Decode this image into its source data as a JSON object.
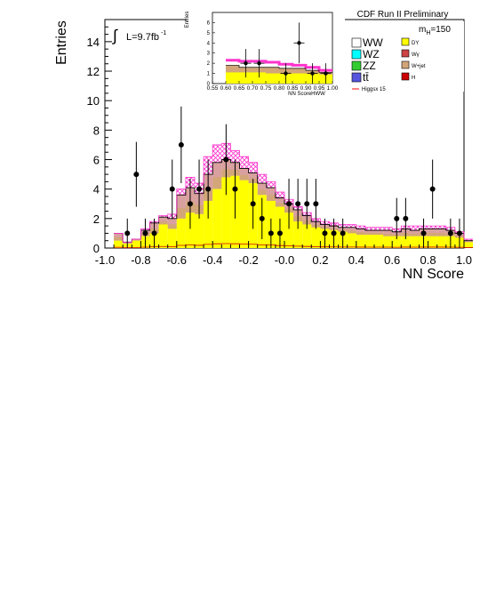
{
  "chart_data": [
    {
      "type": "histogram",
      "title": "CDF Run II Preliminary",
      "xlabel": "NN Score",
      "ylabel": "Entries",
      "xlim": [
        -1.0,
        1.0
      ],
      "ylim": [
        0,
        15.5
      ],
      "x_ticks": [
        "-1.0",
        "-0.8",
        "-0.6",
        "-0.4",
        "-0.2",
        "-0.0",
        "0.2",
        "0.4",
        "0.6",
        "0.8",
        "1.0"
      ],
      "y_ticks": [
        "0",
        "2",
        "4",
        "6",
        "8",
        "10",
        "12",
        "14"
      ],
      "luminosity_label": "L=9.7fb",
      "luminosity_sup": "-1",
      "integral_symbol": "∫",
      "mass_label": "m",
      "mass_sub": "H",
      "mass_value": "=150",
      "legend": [
        {
          "label": "WW",
          "color": "#ffffff",
          "size": "large"
        },
        {
          "label": "DY",
          "color": "#ffff00",
          "size": "small"
        },
        {
          "label": "WZ",
          "color": "#00ffff",
          "size": "large"
        },
        {
          "label": "Wγ",
          "color": "#cc4444",
          "size": "small"
        },
        {
          "label": "ZZ",
          "color": "#33cc33",
          "size": "large"
        },
        {
          "label": "W+jet",
          "color": "#d2a679",
          "size": "small"
        },
        {
          "label": "tt̄",
          "color": "#5555dd",
          "size": "large"
        },
        {
          "label": "H",
          "color": "#cc0000",
          "size": "small"
        },
        {
          "label": "Higgsx 15",
          "color": "#ff3333",
          "size": "line"
        }
      ],
      "bin_edges_start": -0.95,
      "bin_width": 0.05,
      "dy": [
        0.5,
        0.3,
        0.5,
        0.8,
        1.0,
        1.6,
        1.3,
        2.0,
        2.4,
        2.3,
        3.2,
        4.0,
        4.8,
        4.9,
        4.6,
        4.4,
        3.6,
        3.2,
        2.8,
        2.4,
        1.8,
        1.6,
        1.4,
        1.3,
        1.2,
        1.1,
        1.0,
        0.9,
        0.9,
        0.9,
        0.8,
        0.8,
        0.8,
        0.8,
        0.8,
        0.8,
        0.8,
        0.8,
        0.7,
        0.4
      ],
      "total_bkg": [
        1.0,
        0.4,
        0.6,
        1.2,
        1.7,
        2.1,
        2.0,
        3.6,
        4.1,
        3.7,
        5.0,
        5.8,
        6.0,
        5.8,
        5.4,
        5.1,
        4.4,
        4.1,
        3.4,
        3.0,
        2.6,
        2.2,
        1.8,
        1.6,
        1.5,
        1.4,
        1.4,
        1.3,
        1.2,
        1.2,
        1.2,
        1.1,
        1.3,
        1.2,
        1.3,
        1.3,
        1.3,
        1.2,
        1.0,
        0.5
      ],
      "signal_envelope": [
        1.0,
        0.4,
        0.6,
        1.3,
        1.8,
        2.2,
        2.3,
        4.0,
        4.8,
        4.4,
        6.2,
        7.0,
        7.1,
        6.6,
        6.2,
        5.8,
        5.0,
        4.5,
        3.8,
        3.3,
        2.8,
        2.4,
        2.0,
        1.8,
        1.7,
        1.6,
        1.6,
        1.5,
        1.4,
        1.4,
        1.4,
        1.3,
        1.5,
        1.5,
        1.5,
        1.5,
        1.5,
        1.4,
        1.1,
        0.6
      ],
      "data_points": [
        {
          "x": -0.875,
          "y": 1,
          "err": 1.0
        },
        {
          "x": -0.825,
          "y": 5,
          "err": 2.2
        },
        {
          "x": -0.775,
          "y": 1,
          "err": 1.0
        },
        {
          "x": -0.725,
          "y": 1,
          "err": 1.0
        },
        {
          "x": -0.625,
          "y": 4,
          "err": 2.0
        },
        {
          "x": -0.575,
          "y": 7,
          "err": 2.6
        },
        {
          "x": -0.525,
          "y": 3,
          "err": 1.7
        },
        {
          "x": -0.475,
          "y": 4,
          "err": 2.0
        },
        {
          "x": -0.425,
          "y": 4,
          "err": 2.0
        },
        {
          "x": -0.325,
          "y": 6,
          "err": 2.4
        },
        {
          "x": -0.275,
          "y": 4,
          "err": 2.0
        },
        {
          "x": -0.175,
          "y": 3,
          "err": 1.7
        },
        {
          "x": -0.125,
          "y": 2,
          "err": 1.4
        },
        {
          "x": -0.075,
          "y": 1,
          "err": 1.0
        },
        {
          "x": -0.025,
          "y": 1,
          "err": 1.0
        },
        {
          "x": 0.025,
          "y": 3,
          "err": 1.7
        },
        {
          "x": 0.075,
          "y": 3,
          "err": 1.7
        },
        {
          "x": 0.125,
          "y": 3,
          "err": 1.7
        },
        {
          "x": 0.175,
          "y": 3,
          "err": 1.7
        },
        {
          "x": 0.225,
          "y": 1,
          "err": 1.0
        },
        {
          "x": 0.275,
          "y": 1,
          "err": 1.0
        },
        {
          "x": 0.325,
          "y": 1,
          "err": 1.0
        },
        {
          "x": 0.625,
          "y": 2,
          "err": 1.4
        },
        {
          "x": 0.675,
          "y": 2,
          "err": 1.4
        },
        {
          "x": 0.775,
          "y": 1,
          "err": 1.0
        },
        {
          "x": 0.825,
          "y": 4,
          "err": 2.0
        },
        {
          "x": 0.925,
          "y": 1,
          "err": 1.0
        },
        {
          "x": 0.975,
          "y": 1,
          "err": 1.0
        }
      ]
    },
    {
      "type": "histogram",
      "title": "",
      "xlabel": "NN ScoreHWW",
      "ylabel": "Entries",
      "xlim": [
        0.55,
        1.0
      ],
      "ylim": [
        0,
        7
      ],
      "x_ticks": [
        "0.55",
        "0.60",
        "0.65",
        "0.70",
        "0.75",
        "0.80",
        "0.85",
        "0.90",
        "0.95",
        "1.00"
      ],
      "y_ticks": [
        "0",
        "1",
        "2",
        "3",
        "4",
        "5",
        "6"
      ],
      "dy": [
        0.0,
        1.1,
        1.1,
        1.1,
        1.0,
        1.0,
        1.0,
        1.0,
        0.9
      ],
      "total_bkg": [
        0.0,
        1.8,
        1.6,
        1.6,
        1.6,
        1.5,
        1.5,
        1.3,
        1.1
      ],
      "signal_line": [
        0.0,
        2.3,
        2.2,
        2.2,
        2.1,
        1.9,
        1.8,
        1.6,
        1.3
      ],
      "data_points": [
        {
          "x": 0.675,
          "y": 2,
          "err": 1.4
        },
        {
          "x": 0.725,
          "y": 2,
          "err": 1.4
        },
        {
          "x": 0.825,
          "y": 1,
          "err": 1.0
        },
        {
          "x": 0.875,
          "y": 4,
          "err": 2.0
        },
        {
          "x": 0.925,
          "y": 1,
          "err": 1.0
        },
        {
          "x": 0.975,
          "y": 1,
          "err": 1.0
        }
      ]
    }
  ]
}
